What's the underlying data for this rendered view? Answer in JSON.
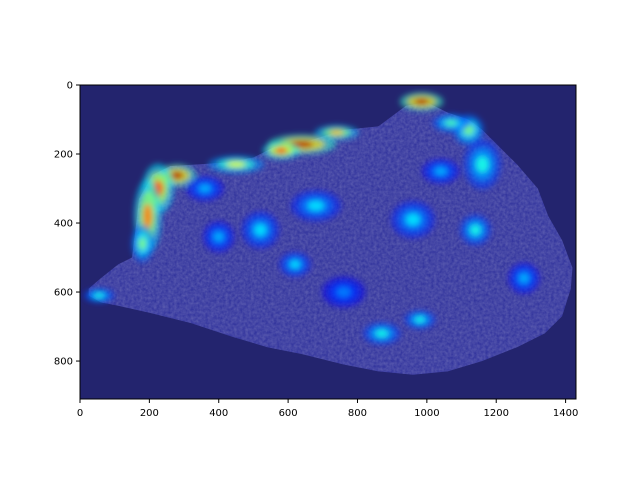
{
  "chart_data": {
    "type": "heatmap",
    "title": "",
    "xlabel": "",
    "ylabel": "",
    "xlim": [
      0,
      1430
    ],
    "ylim": [
      910,
      0
    ],
    "x_ticks": [
      {
        "value": 0,
        "label": "0"
      },
      {
        "value": 200,
        "label": "200"
      },
      {
        "value": 400,
        "label": "400"
      },
      {
        "value": 600,
        "label": "600"
      },
      {
        "value": 800,
        "label": "800"
      },
      {
        "value": 1000,
        "label": "1000"
      },
      {
        "value": 1200,
        "label": "1200"
      },
      {
        "value": 1400,
        "label": "1400"
      }
    ],
    "y_ticks": [
      {
        "value": 0,
        "label": "0"
      },
      {
        "value": 200,
        "label": "200"
      },
      {
        "value": 400,
        "label": "400"
      },
      {
        "value": 600,
        "label": "600"
      },
      {
        "value": 800,
        "label": "800"
      }
    ],
    "grid": false,
    "colormap": "jet",
    "background_color": "#23246e",
    "rock_color": "#2b2d9a",
    "rock_outline": [
      [
        25,
        590
      ],
      [
        60,
        560
      ],
      [
        110,
        520
      ],
      [
        150,
        500
      ],
      [
        160,
        420
      ],
      [
        170,
        330
      ],
      [
        210,
        260
      ],
      [
        260,
        235
      ],
      [
        340,
        230
      ],
      [
        420,
        225
      ],
      [
        500,
        210
      ],
      [
        560,
        180
      ],
      [
        650,
        165
      ],
      [
        760,
        130
      ],
      [
        860,
        120
      ],
      [
        940,
        60
      ],
      [
        1000,
        50
      ],
      [
        1060,
        80
      ],
      [
        1120,
        100
      ],
      [
        1160,
        130
      ],
      [
        1200,
        170
      ],
      [
        1260,
        230
      ],
      [
        1320,
        300
      ],
      [
        1350,
        380
      ],
      [
        1390,
        450
      ],
      [
        1420,
        530
      ],
      [
        1415,
        590
      ],
      [
        1390,
        670
      ],
      [
        1340,
        720
      ],
      [
        1260,
        760
      ],
      [
        1160,
        800
      ],
      [
        1060,
        830
      ],
      [
        960,
        840
      ],
      [
        860,
        830
      ],
      [
        760,
        810
      ],
      [
        640,
        780
      ],
      [
        540,
        760
      ],
      [
        440,
        730
      ],
      [
        320,
        690
      ],
      [
        200,
        660
      ],
      [
        110,
        640
      ],
      [
        60,
        630
      ],
      [
        25,
        610
      ]
    ],
    "hotspots": [
      {
        "x": 985,
        "y": 48,
        "rx": 35,
        "ry": 15,
        "intensity": 0.95
      },
      {
        "x": 640,
        "y": 172,
        "rx": 55,
        "ry": 16,
        "intensity": 0.95
      },
      {
        "x": 580,
        "y": 190,
        "rx": 30,
        "ry": 14,
        "intensity": 0.85
      },
      {
        "x": 740,
        "y": 138,
        "rx": 35,
        "ry": 12,
        "intensity": 0.7
      },
      {
        "x": 450,
        "y": 230,
        "rx": 45,
        "ry": 14,
        "intensity": 0.6
      },
      {
        "x": 280,
        "y": 262,
        "rx": 30,
        "ry": 18,
        "intensity": 0.95
      },
      {
        "x": 225,
        "y": 300,
        "rx": 25,
        "ry": 40,
        "intensity": 0.8
      },
      {
        "x": 195,
        "y": 380,
        "rx": 22,
        "ry": 60,
        "intensity": 0.75
      },
      {
        "x": 180,
        "y": 460,
        "rx": 18,
        "ry": 30,
        "intensity": 0.5
      },
      {
        "x": 1120,
        "y": 130,
        "rx": 25,
        "ry": 25,
        "intensity": 0.5
      },
      {
        "x": 1070,
        "y": 110,
        "rx": 30,
        "ry": 15,
        "intensity": 0.45
      },
      {
        "x": 1160,
        "y": 230,
        "rx": 30,
        "ry": 40,
        "intensity": 0.4
      },
      {
        "x": 1140,
        "y": 420,
        "rx": 25,
        "ry": 25,
        "intensity": 0.4
      },
      {
        "x": 960,
        "y": 390,
        "rx": 35,
        "ry": 30,
        "intensity": 0.35
      },
      {
        "x": 1040,
        "y": 250,
        "rx": 30,
        "ry": 20,
        "intensity": 0.3
      },
      {
        "x": 680,
        "y": 350,
        "rx": 40,
        "ry": 25,
        "intensity": 0.35
      },
      {
        "x": 520,
        "y": 420,
        "rx": 30,
        "ry": 30,
        "intensity": 0.35
      },
      {
        "x": 620,
        "y": 520,
        "rx": 25,
        "ry": 20,
        "intensity": 0.35
      },
      {
        "x": 400,
        "y": 440,
        "rx": 25,
        "ry": 25,
        "intensity": 0.3
      },
      {
        "x": 870,
        "y": 720,
        "rx": 30,
        "ry": 18,
        "intensity": 0.4
      },
      {
        "x": 980,
        "y": 680,
        "rx": 25,
        "ry": 15,
        "intensity": 0.4
      },
      {
        "x": 1280,
        "y": 560,
        "rx": 25,
        "ry": 25,
        "intensity": 0.3
      },
      {
        "x": 760,
        "y": 600,
        "rx": 35,
        "ry": 25,
        "intensity": 0.25
      },
      {
        "x": 55,
        "y": 610,
        "rx": 25,
        "ry": 12,
        "intensity": 0.4
      },
      {
        "x": 360,
        "y": 300,
        "rx": 30,
        "ry": 20,
        "intensity": 0.3
      }
    ]
  }
}
